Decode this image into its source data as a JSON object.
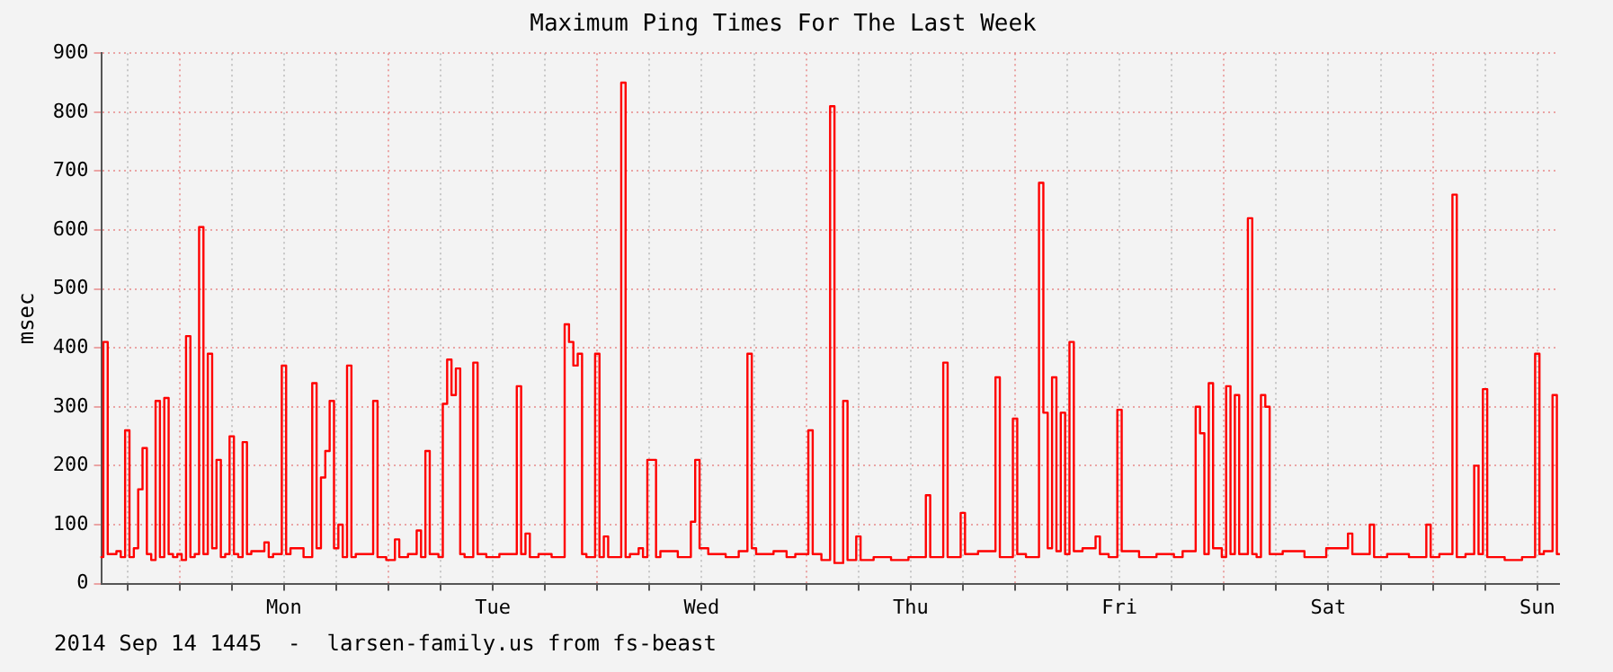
{
  "chart_data": {
    "type": "step",
    "title": "Maximum Ping Times For The Last Week",
    "ylabel": "msec",
    "annotations": [
      "2014 Sep 14 1445  -  larsen-family.us from fs-beast"
    ],
    "categories": [
      null,
      null,
      null,
      null,
      null,
      null,
      null,
      null,
      null,
      null,
      null,
      null,
      null,
      null,
      null,
      null,
      null,
      null,
      null,
      null,
      null,
      null,
      null,
      null,
      null,
      null,
      null,
      null,
      null,
      null,
      null,
      null,
      null,
      null,
      null,
      null,
      null,
      null,
      null,
      null,
      null,
      null,
      "Mon",
      null,
      null,
      null,
      null,
      null,
      null,
      null,
      null,
      null,
      null,
      null,
      null,
      null,
      null,
      null,
      null,
      null,
      null,
      null,
      null,
      null,
      null,
      null,
      null,
      null,
      null,
      null,
      null,
      null,
      null,
      null,
      null,
      null,
      null,
      null,
      null,
      null,
      null,
      null,
      null,
      null,
      null,
      null,
      null,
      null,
      null,
      null,
      "Tue",
      null,
      null,
      null,
      null,
      null,
      null,
      null,
      null,
      null,
      null,
      null,
      null,
      null,
      null,
      null,
      null,
      null,
      null,
      null,
      null,
      null,
      null,
      null,
      null,
      null,
      null,
      null,
      null,
      null,
      null,
      null,
      null,
      null,
      null,
      null,
      null,
      null,
      null,
      null,
      null,
      null,
      null,
      null,
      null,
      null,
      null,
      null,
      "Wed",
      null,
      null,
      null,
      null,
      null,
      null,
      null,
      null,
      null,
      null,
      null,
      null,
      null,
      null,
      null,
      null,
      null,
      null,
      null,
      null,
      null,
      null,
      null,
      null,
      null,
      null,
      null,
      null,
      null,
      null,
      null,
      null,
      null,
      null,
      null,
      null,
      null,
      null,
      null,
      null,
      null,
      null,
      null,
      null,
      null,
      null,
      null,
      "Thu",
      null,
      null,
      null,
      null,
      null,
      null,
      null,
      null,
      null,
      null,
      null,
      null,
      null,
      null,
      null,
      null,
      null,
      null,
      null,
      null,
      null,
      null,
      null,
      null,
      null,
      null,
      null,
      null,
      null,
      null,
      null,
      null,
      null,
      null,
      null,
      null,
      null,
      null,
      null,
      null,
      null,
      null,
      null,
      null,
      null,
      null,
      null,
      "Fri",
      null,
      null,
      null,
      null,
      null,
      null,
      null,
      null,
      null,
      null,
      null,
      null,
      null,
      null,
      null,
      null,
      null,
      null,
      null,
      null,
      null,
      null,
      null,
      null,
      null,
      null,
      null,
      null,
      null,
      null,
      null,
      null,
      null,
      null,
      null,
      null,
      null,
      null,
      null,
      null,
      null,
      null,
      null,
      null,
      null,
      null,
      null,
      "Sat",
      null,
      null,
      null,
      null,
      null,
      null,
      null,
      null,
      null,
      null,
      null,
      null,
      null,
      null,
      null,
      null,
      null,
      null,
      null,
      null,
      null,
      null,
      null,
      null,
      null,
      null,
      null,
      null,
      null,
      null,
      null,
      null,
      null,
      null,
      null,
      null,
      null,
      null,
      null,
      null,
      null,
      null,
      null,
      null,
      null,
      null,
      null,
      "Sun",
      null,
      null,
      null,
      null,
      null
    ],
    "ylim": [
      0,
      900
    ],
    "yticks": [
      0,
      100,
      200,
      300,
      400,
      500,
      600,
      700,
      800,
      900
    ],
    "grid": true,
    "legend": false,
    "series": [
      {
        "color": "#ff0000",
        "values": [
          45,
          410,
          50,
          50,
          55,
          45,
          260,
          45,
          60,
          160,
          230,
          50,
          40,
          310,
          45,
          315,
          50,
          45,
          50,
          40,
          420,
          45,
          50,
          605,
          50,
          390,
          60,
          210,
          45,
          50,
          250,
          50,
          45,
          240,
          50,
          55,
          55,
          55,
          70,
          45,
          50,
          50,
          370,
          50,
          60,
          60,
          60,
          45,
          45,
          340,
          60,
          180,
          225,
          310,
          60,
          100,
          45,
          370,
          45,
          50,
          50,
          50,
          50,
          310,
          45,
          45,
          40,
          40,
          75,
          45,
          45,
          50,
          50,
          90,
          45,
          225,
          50,
          50,
          45,
          305,
          380,
          320,
          365,
          50,
          45,
          45,
          375,
          50,
          50,
          45,
          45,
          45,
          50,
          50,
          50,
          50,
          335,
          50,
          85,
          45,
          45,
          50,
          50,
          50,
          45,
          45,
          45,
          440,
          410,
          370,
          390,
          50,
          45,
          45,
          390,
          45,
          80,
          45,
          45,
          45,
          850,
          45,
          50,
          50,
          60,
          45,
          210,
          210,
          45,
          55,
          55,
          55,
          55,
          45,
          45,
          45,
          105,
          210,
          60,
          60,
          50,
          50,
          50,
          50,
          45,
          45,
          45,
          55,
          55,
          390,
          60,
          50,
          50,
          50,
          50,
          55,
          55,
          55,
          45,
          45,
          50,
          50,
          50,
          260,
          50,
          50,
          40,
          40,
          810,
          35,
          35,
          310,
          40,
          40,
          80,
          40,
          40,
          40,
          45,
          45,
          45,
          45,
          40,
          40,
          40,
          40,
          45,
          45,
          45,
          45,
          150,
          45,
          45,
          45,
          375,
          45,
          45,
          45,
          120,
          50,
          50,
          50,
          55,
          55,
          55,
          55,
          350,
          45,
          45,
          45,
          280,
          50,
          50,
          45,
          45,
          45,
          680,
          290,
          60,
          350,
          55,
          290,
          50,
          410,
          55,
          55,
          60,
          60,
          60,
          80,
          50,
          50,
          45,
          45,
          295,
          55,
          55,
          55,
          55,
          45,
          45,
          45,
          45,
          50,
          50,
          50,
          50,
          45,
          45,
          55,
          55,
          55,
          300,
          255,
          50,
          340,
          60,
          60,
          45,
          335,
          50,
          320,
          50,
          50,
          620,
          50,
          45,
          320,
          300,
          50,
          50,
          50,
          55,
          55,
          55,
          55,
          55,
          45,
          45,
          45,
          45,
          45,
          60,
          60,
          60,
          60,
          60,
          85,
          50,
          50,
          50,
          50,
          100,
          45,
          45,
          45,
          50,
          50,
          50,
          50,
          50,
          45,
          45,
          45,
          45,
          100,
          45,
          45,
          50,
          50,
          50,
          660,
          45,
          45,
          50,
          50,
          200,
          50,
          330,
          45,
          45,
          45,
          45,
          40,
          40,
          40,
          40,
          45,
          45,
          45,
          390,
          50,
          55,
          55,
          320,
          50
        ]
      }
    ]
  }
}
